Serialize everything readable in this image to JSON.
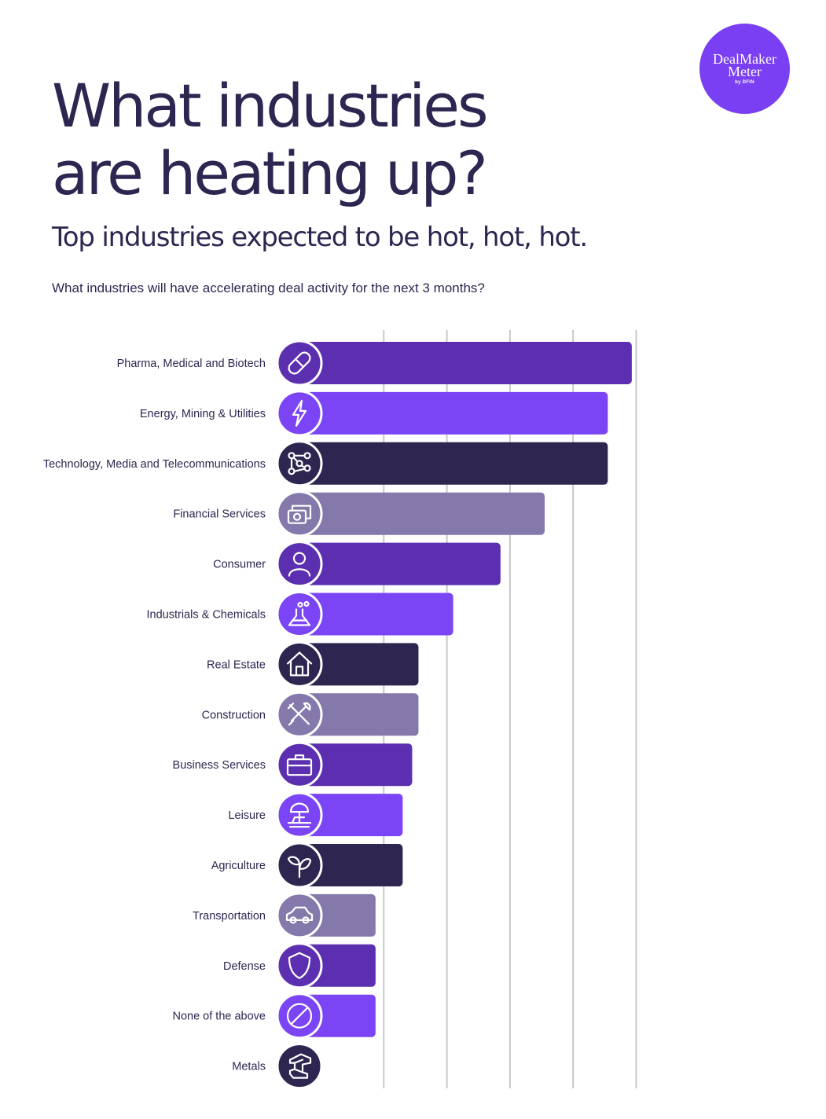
{
  "title_line1": "What industries",
  "title_line2": "are heating up?",
  "subtitle": "Top industries expected to be hot, hot, hot.",
  "question": "What industries will have accelerating deal activity for the next 3 months?",
  "logo": {
    "line1": "DealMaker",
    "line2": "Meter",
    "line3": "by DFIN"
  },
  "colors": {
    "dark_purple": "#5b2fb0",
    "bright_purple": "#7b45f5",
    "navy": "#2e2650",
    "lavender": "#8579ab",
    "grid": "#c8c8c8"
  },
  "chart_data": {
    "type": "bar",
    "orientation": "horizontal",
    "title": "What industries will have accelerating deal activity for the next 3 months?",
    "xlabel": "",
    "ylabel": "",
    "xlim": [
      0,
      5.5
    ],
    "grid": true,
    "gridlines_x": [
      1,
      2,
      3,
      4,
      5
    ],
    "categories": [
      "Pharma, Medical and Biotech",
      "Energy, Mining & Utilities",
      "Technology, Media and Telecommunications",
      "Financial Services",
      "Consumer",
      "Industrials & Chemicals",
      "Real Estate",
      "Construction",
      "Business Services",
      "Leisure",
      "Agriculture",
      "Transportation",
      "Defense",
      "None of the above",
      "Metals"
    ],
    "values": [
      4.93,
      4.55,
      4.55,
      3.55,
      2.85,
      2.1,
      1.55,
      1.55,
      1.45,
      1.3,
      1.3,
      0.87,
      0.87,
      0.87,
      0.0
    ],
    "icons": [
      "pill-icon",
      "lightning-icon",
      "network-icon",
      "money-icon",
      "person-icon",
      "flask-icon",
      "house-icon",
      "tools-icon",
      "briefcase-icon",
      "beach-umbrella-icon",
      "sprout-icon",
      "car-icon",
      "shield-icon",
      "prohibited-icon",
      "metal-beam-icon"
    ],
    "bar_colors": [
      "#5b2fb0",
      "#7b45f5",
      "#2e2650",
      "#8579ab",
      "#5b2fb0",
      "#7b45f5",
      "#2e2650",
      "#8579ab",
      "#5b2fb0",
      "#7b45f5",
      "#2e2650",
      "#8579ab",
      "#5b2fb0",
      "#7b45f5",
      "#2e2650"
    ]
  }
}
